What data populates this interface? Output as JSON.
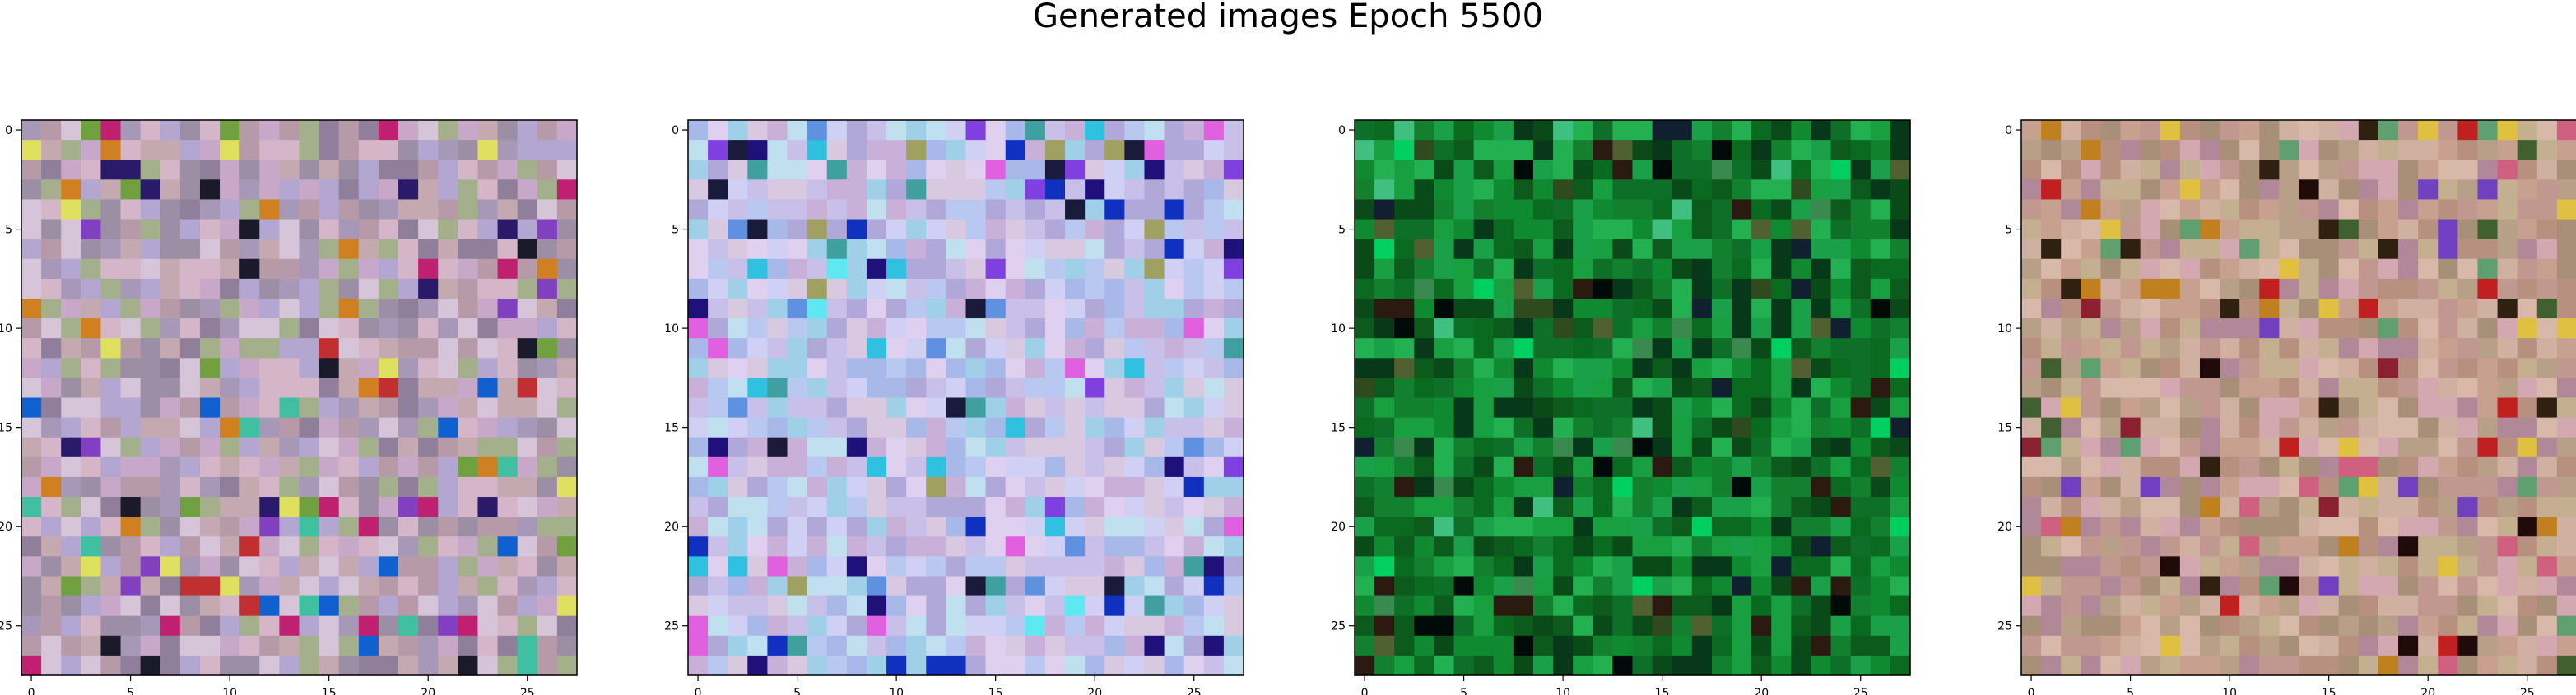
{
  "figure": {
    "title": "Generated images Epoch 5500"
  },
  "chart_data": [
    {
      "type": "heatmap",
      "description": "28x28 RGB generated image, mostly pastel pinks/lavenders/greys with mixed warm and dark pixels",
      "palette": [
        "#b79aa8",
        "#c8a8c9",
        "#a898b8",
        "#d4b6c8",
        "#9c8ea4",
        "#c4aab0",
        "#b3a6d0",
        "#8f7f9a",
        "#d6c4d8",
        "#a4b08c"
      ],
      "accents": [
        "#2a1a6a",
        "#1a1a2a",
        "#c02070",
        "#1060d0",
        "#40c0a0",
        "#d08020",
        "#e0e060",
        "#70a040",
        "#c03030",
        "#8040c0"
      ],
      "seed": 11,
      "x_ticks": [
        0,
        5,
        10,
        15,
        20,
        25
      ],
      "y_ticks": [
        0,
        5,
        10,
        15,
        20,
        25
      ],
      "xlim": [
        -0.5,
        27.5
      ],
      "ylim": [
        27.5,
        -0.5
      ]
    },
    {
      "type": "heatmap",
      "description": "28x28 RGB generated image, light lavender/pale blue with bright cyan center and scattered dark blue pixels",
      "palette": [
        "#c8c0e8",
        "#b8c8f0",
        "#d0d0f4",
        "#a8b8e8",
        "#c0e0f0",
        "#e0d0f0",
        "#b0a8d8",
        "#d8c8e0",
        "#a0d0e8",
        "#c8b0d8"
      ],
      "accents": [
        "#20107a",
        "#1030c0",
        "#60e8f0",
        "#8040e0",
        "#e060e0",
        "#30c0e0",
        "#1a1a3a",
        "#6090e0",
        "#40a0a0",
        "#a0a060"
      ],
      "seed": 23,
      "x_ticks": [
        0,
        5,
        10,
        15,
        20,
        25
      ],
      "y_ticks": [
        0,
        5,
        10,
        15,
        20,
        25
      ],
      "xlim": [
        -0.5,
        27.5
      ],
      "ylim": [
        27.5,
        -0.5
      ]
    },
    {
      "type": "heatmap",
      "description": "28x28 RGB generated image, dominated by greens ranging from dark forest to bright green",
      "palette": [
        "#0a6a20",
        "#108a30",
        "#0c5a1c",
        "#18a040",
        "#0a4a18",
        "#138030",
        "#0e7028",
        "#1aa048",
        "#08381a",
        "#22b050"
      ],
      "accents": [
        "#000a08",
        "#304a20",
        "#40c080",
        "#2a1a10",
        "#00d060",
        "#506030",
        "#102030",
        "#3a8a50"
      ],
      "seed": 37,
      "x_ticks": [
        0,
        5,
        10,
        15,
        20,
        25
      ],
      "y_ticks": [
        0,
        5,
        10,
        15,
        20,
        25
      ],
      "xlim": [
        -0.5,
        27.5
      ],
      "ylim": [
        27.5,
        -0.5
      ]
    },
    {
      "type": "heatmap",
      "description": "28x28 RGB generated image, warm pinks/tans/beiges with scattered dark, red and yellow pixels",
      "palette": [
        "#c8a090",
        "#b89080",
        "#d0b0a0",
        "#c09890",
        "#b8a088",
        "#d4a8b0",
        "#a89078",
        "#c4b090",
        "#d8b8a8",
        "#b08898"
      ],
      "accents": [
        "#200a0a",
        "#c02020",
        "#e0c040",
        "#7040c0",
        "#d06080",
        "#302010",
        "#c08020",
        "#60a070",
        "#8a2030",
        "#406030"
      ],
      "seed": 53,
      "x_ticks": [
        0,
        5,
        10,
        15,
        20,
        25
      ],
      "y_ticks": [
        0,
        5,
        10,
        15,
        20,
        25
      ],
      "xlim": [
        -0.5,
        27.5
      ],
      "ylim": [
        27.5,
        -0.5
      ]
    }
  ]
}
